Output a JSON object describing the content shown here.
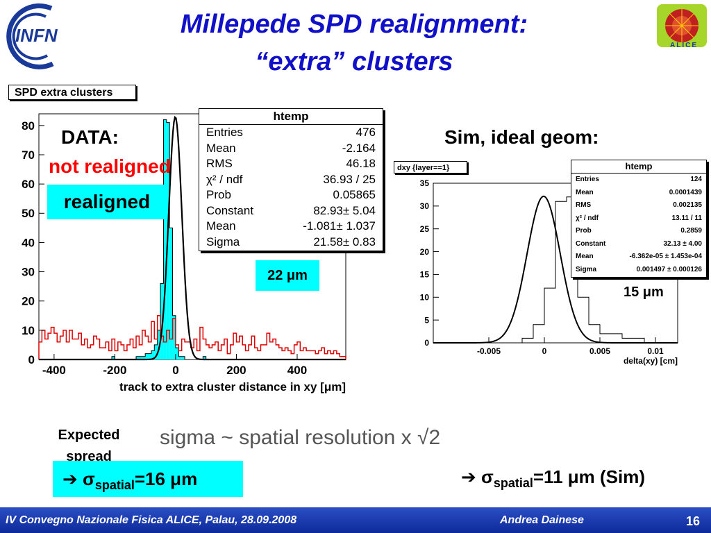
{
  "slide": {
    "title_line1": "Millepede SPD realignment:",
    "title_line2": "“extra” clusters",
    "left_tag": "SPD extra clusters",
    "data_label": "DATA:",
    "not_realigned_label": "not realigned",
    "realigned_label": "realigned",
    "left_resolution": "22 μm",
    "sim_label": "Sim, ideal geom:",
    "right_tag": "dxy {layer==1}",
    "right_resolution": "15 μm",
    "expected_spread": "Expected spread",
    "sigma_formula": "sigma ~ spatial resolution x √2",
    "sigma_data_arrow": "➔",
    "sigma_data_sym": "σ",
    "sigma_data_sub": "spatial",
    "sigma_data_val": "=16 μm",
    "sigma_sim_arrow": "➔",
    "sigma_sim_sym": "σ",
    "sigma_sim_sub": "spatial",
    "sigma_sim_val": "=11 μm (Sim)",
    "footer_left": "IV Convegno Nazionale Fisica ALICE, Palau, 28.09.2008",
    "footer_author": "Andrea Dainese",
    "page_number": "16",
    "logo_left_text": "INFN",
    "logo_right_text": "ALICE"
  },
  "stats_left": {
    "header": "htemp",
    "rows": [
      {
        "k": "Entries",
        "v": "476"
      },
      {
        "k": "Mean",
        "v": "-2.164"
      },
      {
        "k": "RMS",
        "v": "46.18"
      },
      {
        "k": "χ² / ndf",
        "v": "36.93 / 25"
      },
      {
        "k": "Prob",
        "v": "0.05865"
      },
      {
        "k": "Constant",
        "v": "82.93± 5.04"
      },
      {
        "k": "Mean",
        "v": "-1.081± 1.037"
      },
      {
        "k": "Sigma",
        "v": "21.58± 0.83"
      }
    ]
  },
  "stats_right": {
    "header": "htemp",
    "rows": [
      {
        "k": "Entries",
        "v": "124"
      },
      {
        "k": "Mean",
        "v": "0.0001439"
      },
      {
        "k": "RMS",
        "v": "0.002135"
      },
      {
        "k": "χ² / ndf",
        "v": "13.11 / 11"
      },
      {
        "k": "Prob",
        "v": "0.2859"
      },
      {
        "k": "Constant",
        "v": "32.13 ± 4.00"
      },
      {
        "k": "Mean",
        "v": "-6.362e-05 ± 1.453e-04"
      },
      {
        "k": "Sigma",
        "v": "0.001497 ± 0.000126"
      }
    ]
  },
  "colors": {
    "title": "#1010c8",
    "cyan": "#00ffff",
    "red_hist": "#e00000",
    "red_text": "#ff0000",
    "footer": "#1530a8"
  },
  "chart_data": [
    {
      "type": "bar",
      "title": "SPD extra clusters",
      "xlabel": "track to extra cluster distance in xy [μm]",
      "ylabel": "",
      "xlim": [
        -450,
        560
      ],
      "ylim": [
        0,
        84
      ],
      "xticks": [
        -400,
        -200,
        0,
        200,
        400
      ],
      "yticks": [
        0,
        10,
        20,
        30,
        40,
        50,
        60,
        70,
        80
      ],
      "series": [
        {
          "name": "realigned",
          "bin_width": 10,
          "x_start": -450,
          "values": [
            0,
            0,
            0,
            0,
            0,
            0,
            0,
            0,
            0,
            0,
            0,
            0,
            0,
            0,
            0,
            0,
            0,
            0,
            0,
            0,
            0,
            0,
            0,
            0,
            1,
            0,
            0,
            0,
            0,
            0,
            0,
            0,
            1,
            1,
            1,
            2,
            2,
            3,
            5,
            10,
            26,
            82,
            81,
            45,
            15,
            4,
            1,
            1,
            0,
            0,
            0,
            0,
            0,
            0,
            1,
            0,
            0,
            0,
            0,
            0,
            0,
            0,
            0,
            0,
            0,
            0,
            0,
            0,
            0,
            0,
            0,
            0,
            0,
            0,
            0,
            0,
            0,
            0,
            0,
            0,
            0,
            0,
            0,
            0,
            0,
            0,
            0,
            0,
            0,
            0,
            0,
            0,
            0,
            0,
            0,
            0,
            0,
            0,
            0,
            0,
            0
          ]
        },
        {
          "name": "not realigned",
          "bin_width": 10,
          "x_start": -450,
          "values": [
            6,
            10,
            7,
            9,
            11,
            9,
            6,
            8,
            10,
            6,
            10,
            7,
            7,
            9,
            5,
            7,
            4,
            5,
            8,
            7,
            4,
            4,
            6,
            3,
            7,
            3,
            6,
            5,
            3,
            5,
            7,
            4,
            8,
            5,
            10,
            8,
            6,
            13,
            7,
            15,
            8,
            6,
            10,
            7,
            14,
            5,
            3,
            7,
            6,
            6,
            4,
            7,
            3,
            11,
            7,
            5,
            4,
            5,
            6,
            3,
            5,
            7,
            2,
            5,
            9,
            6,
            8,
            5,
            3,
            5,
            8,
            4,
            3,
            5,
            5,
            9,
            6,
            7,
            5,
            4,
            3,
            4,
            3,
            2,
            5,
            6,
            3,
            4,
            3,
            3,
            3,
            2,
            3,
            4,
            2,
            3,
            2,
            3,
            2,
            1,
            1
          ]
        }
      ],
      "fit": {
        "constant": 82.93,
        "mean": -1.081,
        "sigma": 21.58
      }
    },
    {
      "type": "bar",
      "title": "dxy {layer==1}",
      "xlabel": "delta(xy) [cm]",
      "ylabel": "",
      "xlim": [
        -0.01,
        0.012
      ],
      "ylim": [
        0,
        35
      ],
      "xticks": [
        -0.005,
        0,
        0.005,
        0.01
      ],
      "yticks": [
        0,
        5,
        10,
        15,
        20,
        25,
        30,
        35
      ],
      "series": [
        {
          "name": "",
          "bin_width": 0.001,
          "x_start": -0.01,
          "values": [
            0,
            0,
            0,
            0,
            0,
            0,
            0,
            0,
            1,
            4,
            12,
            31,
            32,
            10,
            4,
            2,
            2,
            1,
            1,
            0,
            0,
            0
          ]
        }
      ],
      "fit": {
        "constant": 32.13,
        "mean": -6.362e-05,
        "sigma": 0.001497
      }
    }
  ]
}
